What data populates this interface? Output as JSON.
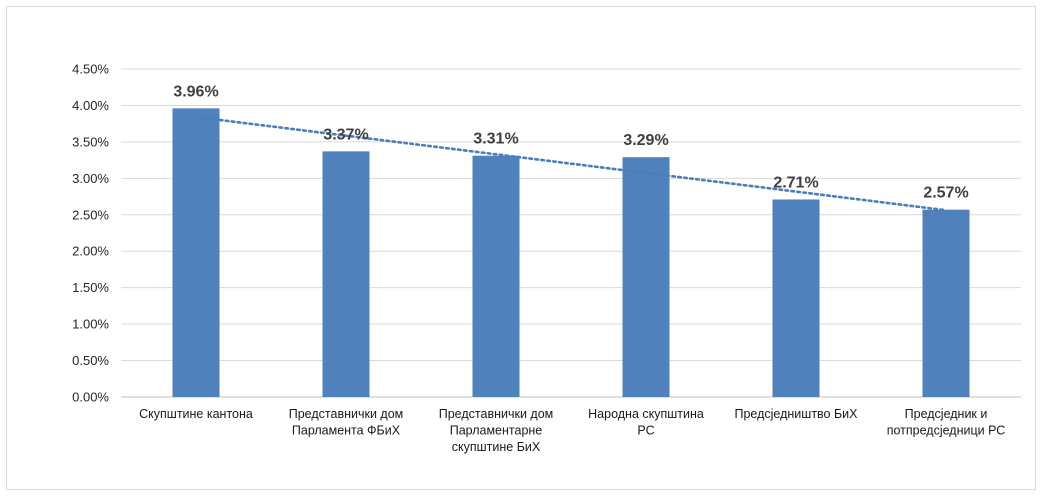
{
  "chart_data": {
    "type": "bar",
    "title": "",
    "xlabel": "",
    "ylabel": "",
    "categories": [
      [
        "Скупштине кантона"
      ],
      [
        "Представнички дом",
        "Парламента ФБиХ"
      ],
      [
        "Представнички дом",
        "Парламентарне",
        "скупштине БиХ"
      ],
      [
        "Народна скупштина",
        "РС"
      ],
      [
        "Предсједништво БиХ"
      ],
      [
        "Предсједник и",
        "потпредсједници РС"
      ]
    ],
    "values": [
      3.96,
      3.37,
      3.31,
      3.29,
      2.71,
      2.57
    ],
    "data_labels": [
      "3.96%",
      "3.37%",
      "3.31%",
      "3.29%",
      "2.71%",
      "2.57%"
    ],
    "y_ticks": [
      "0.00%",
      "0.50%",
      "1.00%",
      "1.50%",
      "2.00%",
      "2.50%",
      "3.00%",
      "3.50%",
      "4.00%",
      "4.50%"
    ],
    "ylim": [
      0,
      4.5
    ],
    "y_step": 0.5,
    "trendline": {
      "type": "linear",
      "style": "dotted"
    },
    "grid": true,
    "legend": "none",
    "colors": {
      "bar": "#4f81bd",
      "trendline": "#4a7ebb",
      "grid": "#d9d9d9",
      "axis": "#bfbfbf"
    }
  }
}
